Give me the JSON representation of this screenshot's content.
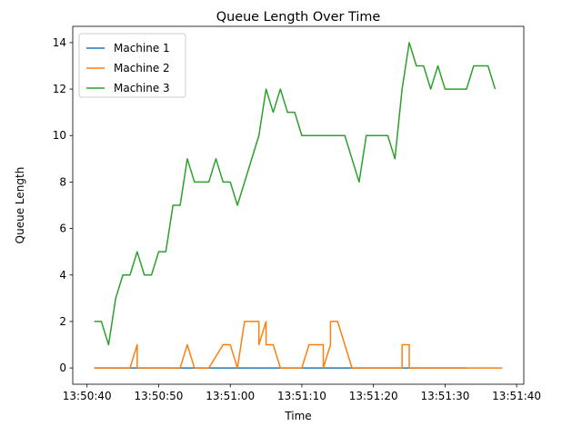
{
  "chart_data": {
    "type": "line",
    "title": "Queue Length Over Time",
    "xlabel": "Time",
    "ylabel": "Queue Length",
    "x_ticks": [
      "13:50:40",
      "13:50:50",
      "13:51:00",
      "13:51:10",
      "13:51:20",
      "13:51:30",
      "13:51:40"
    ],
    "y_ticks": [
      "0",
      "2",
      "4",
      "6",
      "8",
      "10",
      "12",
      "14"
    ],
    "xlim": [
      "13:50:38",
      "13:51:41"
    ],
    "ylim": [
      -0.7,
      14.7
    ],
    "legend": "top-left",
    "grid": false,
    "series": [
      {
        "name": "Machine 1",
        "color": "#1f77b4",
        "x": [
          "13:50:41",
          "13:51:24",
          "13:51:33"
        ],
        "y": [
          0,
          0,
          0
        ]
      },
      {
        "name": "Machine 2",
        "color": "#ff7f0e",
        "x": [
          "13:50:41",
          "13:50:46",
          "13:50:47",
          "13:50:47",
          "13:50:53",
          "13:50:54",
          "13:50:55",
          "13:50:57",
          "13:50:59",
          "13:51:00",
          "13:51:01",
          "13:51:02",
          "13:51:04",
          "13:51:04",
          "13:51:05",
          "13:51:05",
          "13:51:06",
          "13:51:07",
          "13:51:10",
          "13:51:11",
          "13:51:13",
          "13:51:13",
          "13:51:14",
          "13:51:14",
          "13:51:15",
          "13:51:17",
          "13:51:24",
          "13:51:24",
          "13:51:25",
          "13:51:25",
          "13:51:38"
        ],
        "y": [
          0,
          0,
          1,
          0,
          0,
          1,
          0,
          0,
          1,
          1,
          0,
          2,
          2,
          1,
          2,
          1,
          1,
          0,
          0,
          1,
          1,
          0,
          1,
          2,
          2,
          0,
          0,
          1,
          1,
          0,
          0
        ]
      },
      {
        "name": "Machine 3",
        "color": "#2ca02c",
        "x": [
          "13:50:41",
          "13:50:42",
          "13:50:43",
          "13:50:44",
          "13:50:45",
          "13:50:46",
          "13:50:47",
          "13:50:48",
          "13:50:49",
          "13:50:50",
          "13:50:51",
          "13:50:52",
          "13:50:53",
          "13:50:54",
          "13:50:55",
          "13:50:57",
          "13:50:58",
          "13:50:59",
          "13:51:00",
          "13:51:01",
          "13:51:04",
          "13:51:05",
          "13:51:06",
          "13:51:07",
          "13:51:08",
          "13:51:09",
          "13:51:10",
          "13:51:16",
          "13:51:18",
          "13:51:19",
          "13:51:22",
          "13:51:23",
          "13:51:24",
          "13:51:25",
          "13:51:26",
          "13:51:27",
          "13:51:28",
          "13:51:29",
          "13:51:30",
          "13:51:33",
          "13:51:34",
          "13:51:36",
          "13:51:37"
        ],
        "y": [
          2,
          2,
          1,
          3,
          4,
          4,
          5,
          4,
          4,
          5,
          5,
          7,
          7,
          9,
          8,
          8,
          9,
          8,
          8,
          7,
          10,
          12,
          11,
          12,
          11,
          11,
          10,
          10,
          8,
          10,
          10,
          9,
          12,
          14,
          13,
          13,
          12,
          13,
          12,
          12,
          13,
          13,
          12
        ]
      }
    ]
  }
}
